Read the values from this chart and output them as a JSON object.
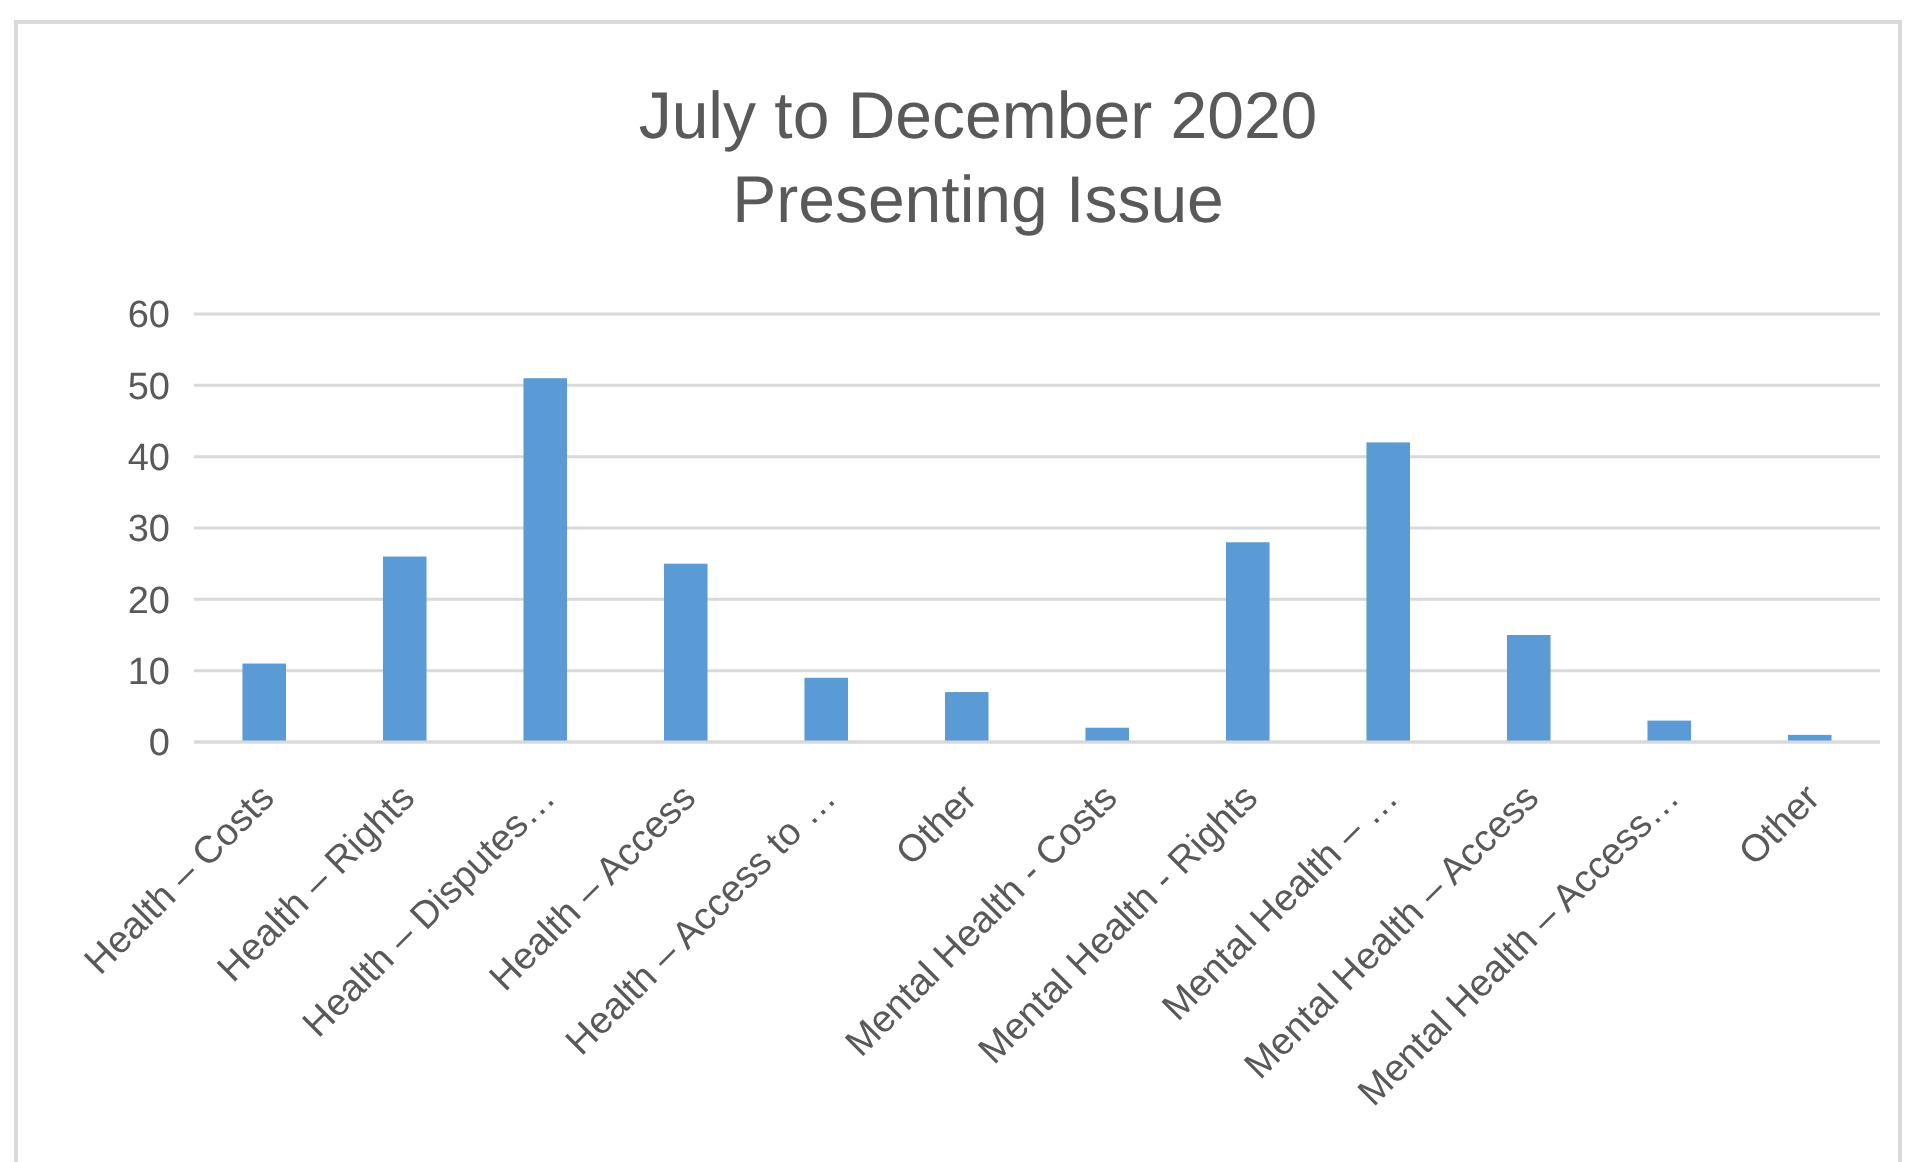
{
  "chart_data": {
    "type": "bar",
    "title": "July to December 2020\nPresenting Issue",
    "categories": [
      "Health – Costs",
      "Health – Rights",
      "Health – Disputes…",
      "Health – Access",
      "Health – Access to …",
      "Other",
      "Mental Health - Costs",
      "Mental Health - Rights",
      "Mental Health – …",
      "Mental Health – Access",
      "Mental Health – Access…",
      "Other"
    ],
    "values": [
      11,
      26,
      51,
      25,
      9,
      7,
      2,
      28,
      42,
      15,
      3,
      1
    ],
    "color": "#5b9bd5",
    "ylim": [
      0,
      60
    ],
    "yticks": [
      0,
      10,
      20,
      30,
      40,
      50,
      60
    ],
    "grid": "y"
  }
}
